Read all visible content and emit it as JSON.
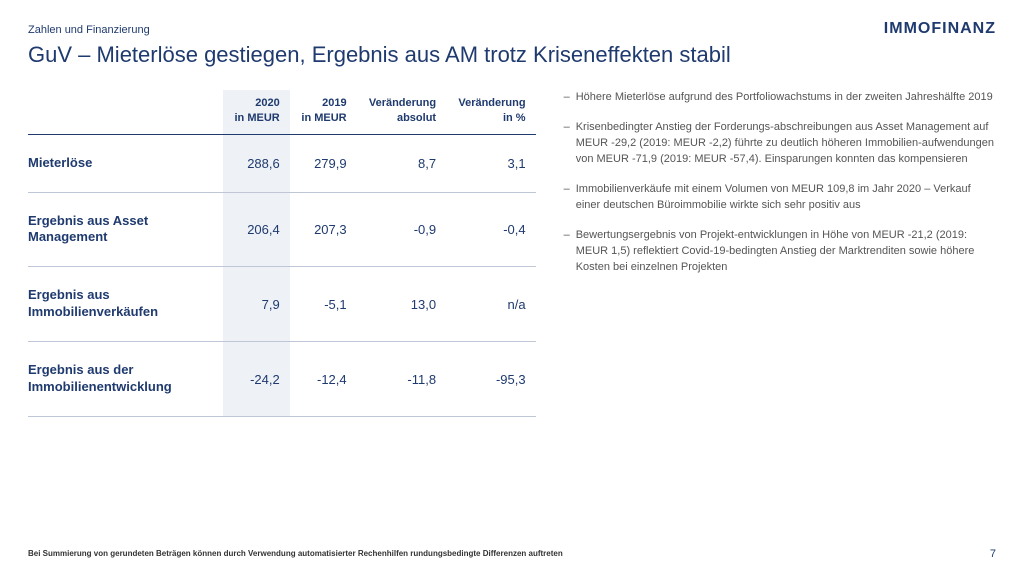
{
  "header": {
    "section_label": "Zahlen und Finanzierung",
    "brand": "IMMOFINANZ"
  },
  "title": "GuV – Mieterlöse gestiegen, Ergebnis aus AM trotz Kriseneffekten stabil",
  "table": {
    "columns": {
      "row_head": "",
      "col_2020_l1": "2020",
      "col_2020_l2": "in MEUR",
      "col_2019_l1": "2019",
      "col_2019_l2": "in MEUR",
      "col_abs_l1": "Veränderung",
      "col_abs_l2": "absolut",
      "col_pct_l1": "Veränderung",
      "col_pct_l2": "in %"
    },
    "rows": [
      {
        "label": "Mieterlöse",
        "v2020": "288,6",
        "v2019": "279,9",
        "abs": "8,7",
        "pct": "3,1"
      },
      {
        "label": "Ergebnis aus Asset Management",
        "v2020": "206,4",
        "v2019": "207,3",
        "abs": "-0,9",
        "pct": "-0,4"
      },
      {
        "label": "Ergebnis aus Immobilienverkäufen",
        "v2020": "7,9",
        "v2019": "-5,1",
        "abs": "13,0",
        "pct": "n/a"
      },
      {
        "label": "Ergebnis aus der Immobilienentwicklung",
        "v2020": "-24,2",
        "v2019": "-12,4",
        "abs": "-11,8",
        "pct": "-95,3"
      }
    ],
    "highlight_column_index": 1,
    "colors": {
      "text": "#1f3a6e",
      "highlight_bg": "#eef1f6",
      "border_header": "#1f3a6e",
      "border_row": "#bfc7d6"
    }
  },
  "notes": [
    "Höhere Mieterlöse aufgrund des Portfoliowachstums in der zweiten Jahreshälfte 2019",
    "Krisenbedingter Anstieg der Forderungs-abschreibungen aus Asset Management auf MEUR -29,2 (2019: MEUR -2,2) führte zu deutlich höheren Immobilien-aufwendungen von MEUR -71,9 (2019: MEUR -57,4). Einsparungen konnten das kompensieren",
    "Immobilienverkäufe mit einem Volumen von MEUR 109,8 im Jahr 2020 – Verkauf einer deutschen Büroimmobilie wirkte sich sehr positiv aus",
    "Bewertungsergebnis von Projekt-entwicklungen in Höhe von MEUR -21,2 (2019: MEUR 1,5) reflektiert Covid-19-bedingten Anstieg der Marktrenditen sowie höhere Kosten bei einzelnen Projekten"
  ],
  "footnote": "Bei Summierung von gerundeten Beträgen können durch Verwendung automatisierter Rechenhilfen rundungsbedingte Differenzen auftreten",
  "page_number": "7"
}
